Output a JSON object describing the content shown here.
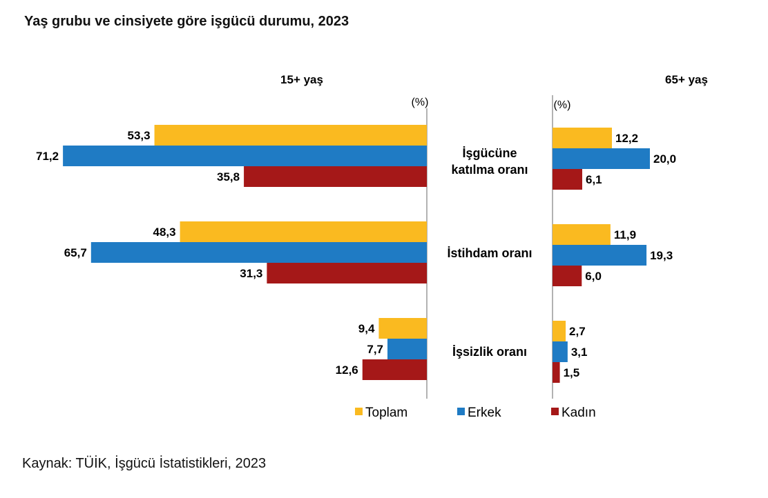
{
  "title": "Yaş grubu ve cinsiyete göre işgücü durumu, 2023",
  "source": "Kaynak: TÜİK, İşgücü İstatistikleri, 2023",
  "colors": {
    "Toplam": "#FABA20",
    "Erkek": "#1F7BC4",
    "Kadın": "#A51818"
  },
  "chart_data": [
    {
      "type": "bar",
      "orientation": "horizontal",
      "panel_title": "15+ yaş",
      "unit": "(%)",
      "categories": [
        "İşgücüne katılma oranı",
        "İstihdam oranı",
        "İşsizlik oranı"
      ],
      "series": [
        {
          "name": "Toplam",
          "values": [
            53.3,
            48.3,
            9.4
          ],
          "labels": [
            "53,3",
            "48,3",
            "9,4"
          ]
        },
        {
          "name": "Erkek",
          "values": [
            71.2,
            65.7,
            7.7
          ],
          "labels": [
            "71,2",
            "65,7",
            "7,7"
          ]
        },
        {
          "name": "Kadın",
          "values": [
            35.8,
            31.3,
            12.6
          ],
          "labels": [
            "35,8",
            "31,3",
            "12,6"
          ]
        }
      ]
    },
    {
      "type": "bar",
      "orientation": "horizontal",
      "panel_title": "65+ yaş",
      "unit": "(%)",
      "categories": [
        "İşgücüne katılma oranı",
        "İstihdam oranı",
        "İşsizlik oranı"
      ],
      "series": [
        {
          "name": "Toplam",
          "values": [
            12.2,
            11.9,
            2.7
          ],
          "labels": [
            "12,2",
            "11,9",
            "2,7"
          ]
        },
        {
          "name": "Erkek",
          "values": [
            20.0,
            19.3,
            3.1
          ],
          "labels": [
            "20,0",
            "19,3",
            "3,1"
          ]
        },
        {
          "name": "Kadın",
          "values": [
            6.1,
            6.0,
            1.5
          ],
          "labels": [
            "6,1",
            "6,0",
            "1,5"
          ]
        }
      ]
    }
  ],
  "category_labels": [
    [
      "İşgücüne",
      "katılma oranı"
    ],
    [
      "İstihdam oranı"
    ],
    [
      "İşsizlik oranı"
    ]
  ],
  "legend": [
    "Toplam",
    "Erkek",
    "Kadın"
  ]
}
